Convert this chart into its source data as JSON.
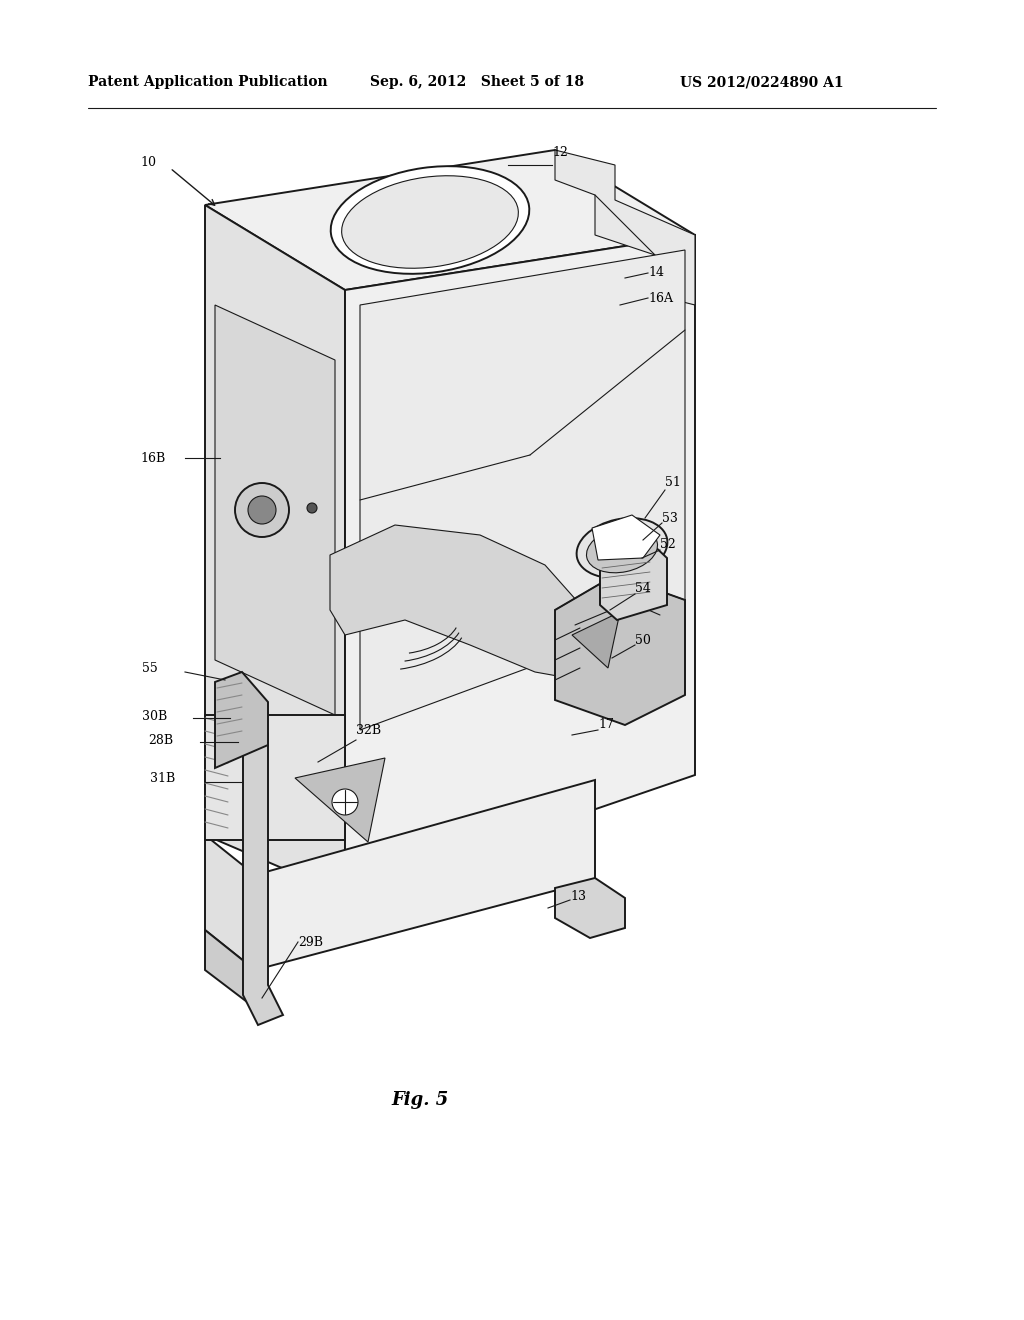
{
  "background_color": "#ffffff",
  "header_left": "Patent Application Publication",
  "header_center": "Sep. 6, 2012   Sheet 5 of 18",
  "header_right": "US 2012/0224890 A1",
  "figure_label": "Fig. 5",
  "line_color": "#1a1a1a",
  "text_color": "#000000",
  "font_size_header": 10,
  "font_size_label": 9,
  "font_size_figure": 13
}
